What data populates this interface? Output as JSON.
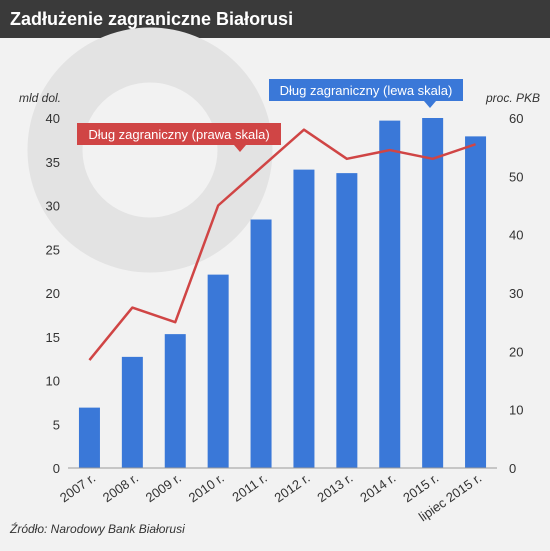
{
  "title": "Zadłużenie zagraniczne Białorusi",
  "source": "Źródło: Narodowy Bank Białorusi",
  "chart_data": {
    "type": "bar+line",
    "categories": [
      "2007 r.",
      "2008 r.",
      "2009 r.",
      "2010 r.",
      "2011 r.",
      "2012 r.",
      "2013 r.",
      "2014 r.",
      "2015 r.",
      "lipiec 2015 r."
    ],
    "series": [
      {
        "name": "Dług zagraniczny (lewa skala)",
        "type": "bar",
        "axis": "left",
        "color": "#3a78d8",
        "values": [
          6.9,
          12.7,
          15.3,
          22.1,
          28.4,
          34.1,
          33.7,
          39.7,
          40.0,
          37.9
        ]
      },
      {
        "name": "Dług zagraniczny (prawa skala)",
        "type": "line",
        "axis": "right",
        "color": "#d04545",
        "values": [
          18.5,
          27.5,
          25.0,
          45.0,
          51.5,
          58.0,
          53.0,
          54.5,
          53.0,
          55.5
        ]
      }
    ],
    "left_axis": {
      "label": "mld dol.",
      "min": 0,
      "max": 40,
      "ticks": [
        0,
        5,
        10,
        15,
        20,
        25,
        30,
        35,
        40
      ]
    },
    "right_axis": {
      "label": "proc. PKB",
      "min": 0,
      "max": 60,
      "ticks": [
        0,
        10,
        20,
        30,
        40,
        50,
        60
      ]
    },
    "grid": false,
    "legend": "callouts"
  }
}
